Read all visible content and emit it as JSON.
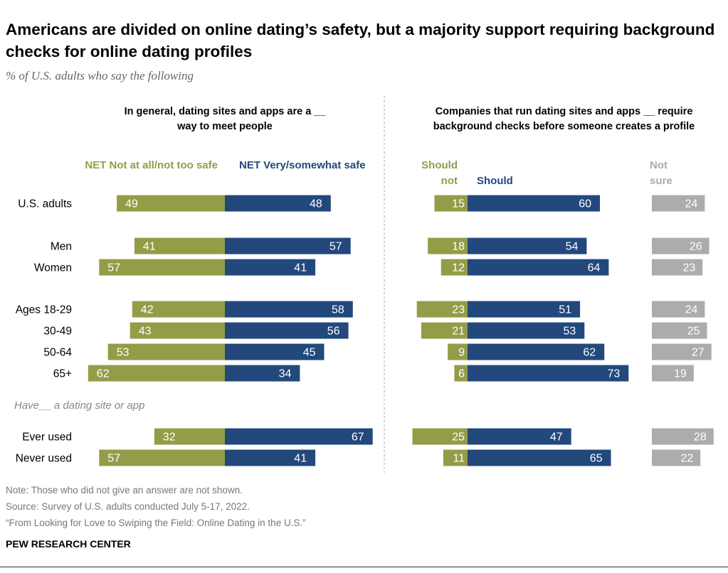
{
  "title": "Americans are divided on online dating’s safety, but a majority support requiring background checks for online dating profiles",
  "subtitle": "% of U.S. adults who say the following",
  "chart_data": [
    {
      "type": "bar",
      "orientation": "horizontal",
      "stacked": "diverging",
      "title": "In general, dating sites and apps are a __ way to meet people",
      "categories": [
        "U.S. adults",
        "Men",
        "Women",
        "Ages 18-29",
        "30-49",
        "50-64",
        "65+",
        "Ever used",
        "Never used"
      ],
      "series": [
        {
          "name": "NET Not at all/not too safe",
          "color": "#949c48",
          "values": [
            49,
            41,
            57,
            42,
            43,
            53,
            62,
            32,
            57
          ]
        },
        {
          "name": "NET Very/somewhat safe",
          "color": "#22487c",
          "values": [
            48,
            57,
            41,
            58,
            56,
            45,
            34,
            67,
            41
          ]
        }
      ]
    },
    {
      "type": "bar",
      "orientation": "horizontal",
      "stacked": "diverging",
      "title": "Companies that run dating sites and apps __ require background checks before someone creates a profile",
      "categories": [
        "U.S. adults",
        "Men",
        "Women",
        "Ages 18-29",
        "30-49",
        "50-64",
        "65+",
        "Ever used",
        "Never used"
      ],
      "series": [
        {
          "name": "Should not",
          "color": "#949c48",
          "values": [
            15,
            18,
            12,
            23,
            21,
            9,
            6,
            25,
            11
          ]
        },
        {
          "name": "Should",
          "color": "#22487c",
          "values": [
            60,
            54,
            64,
            51,
            53,
            62,
            73,
            47,
            65
          ]
        },
        {
          "name": "Not sure",
          "color": "#acacac",
          "values": [
            24,
            26,
            23,
            24,
            25,
            27,
            19,
            28,
            22
          ]
        }
      ]
    }
  ],
  "group_label": "Have__ a dating site or app",
  "notes": [
    "Note: Those who did not give an answer are not shown.",
    "Source: Survey of U.S. adults conducted July 5-17, 2022.",
    "“From Looking for Love to Swiping the Field: Online Dating in the U.S.”"
  ],
  "brand": "PEW RESEARCH CENTER"
}
